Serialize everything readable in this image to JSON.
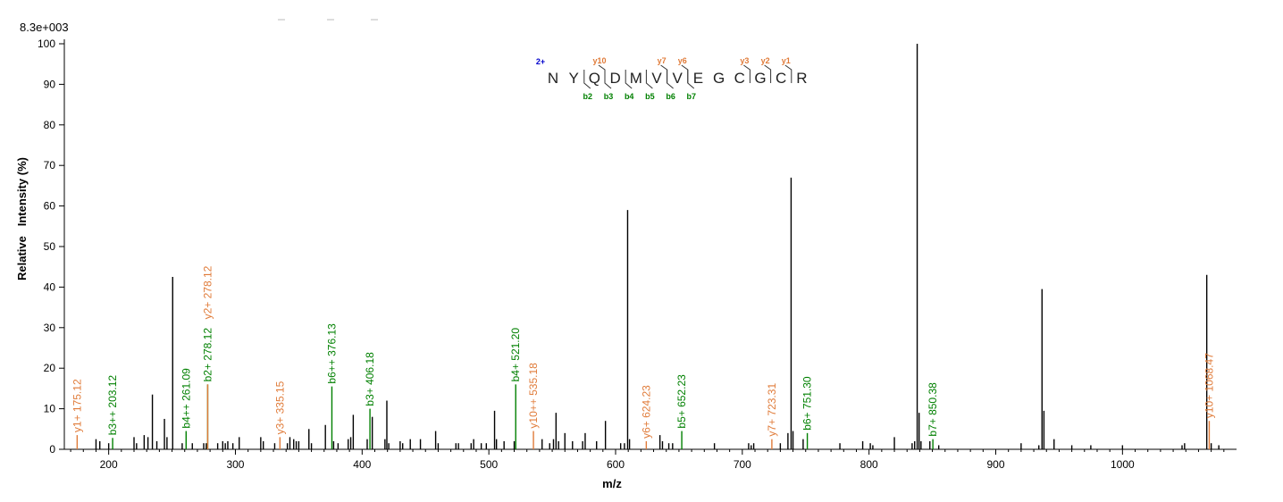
{
  "chart_data": {
    "type": "bar",
    "max_intensity_label": "8.3e+003",
    "xlabel": "m/z",
    "ylabel": "Relative   Intensity (%)",
    "xlim": [
      165,
      1090
    ],
    "ylim": [
      0,
      100
    ],
    "x_ticks": [
      200,
      300,
      400,
      500,
      600,
      700,
      800,
      900,
      1000
    ],
    "y_ticks": [
      0,
      10,
      20,
      30,
      40,
      50,
      60,
      70,
      80,
      90,
      100
    ],
    "colors": {
      "b": "#008000",
      "y": "#e07b39",
      "unassigned": "#000000",
      "charge": "#0000cc"
    },
    "peptide": {
      "charge": "2+",
      "residues": [
        "N",
        "Y",
        "Q",
        "D",
        "M",
        "V",
        "V",
        "E",
        "G",
        "C",
        "G",
        "C",
        "R"
      ],
      "y_ions": [
        {
          "label": "y10",
          "after": 3
        },
        {
          "label": "y7",
          "after": 6
        },
        {
          "label": "y6",
          "after": 7
        },
        {
          "label": "y3",
          "after": 10
        },
        {
          "label": "y2",
          "after": 11
        },
        {
          "label": "y1",
          "after": 12
        }
      ],
      "b_ions": [
        {
          "label": "b2",
          "after": 2
        },
        {
          "label": "b3",
          "after": 3
        },
        {
          "label": "b4",
          "after": 4
        },
        {
          "label": "b5",
          "after": 5
        },
        {
          "label": "b6",
          "after": 6
        },
        {
          "label": "b7",
          "after": 7
        }
      ]
    },
    "peaks": [
      {
        "mz": 175.12,
        "i": 3.5,
        "ion": "y",
        "label": "y1+ 175.12"
      },
      {
        "mz": 203.12,
        "i": 2.8,
        "ion": "b",
        "label": "b3++ 203.12"
      },
      {
        "mz": 261.09,
        "i": 4.5,
        "ion": "b",
        "label": "b4++ 261.09"
      },
      {
        "mz": 278.12,
        "i": 16.0,
        "ion": "b",
        "label": "b2+ 278.12"
      },
      {
        "mz": 278.12,
        "i": 16.0,
        "ion": "y",
        "label": "y2+ 278.12"
      },
      {
        "mz": 335.15,
        "i": 3.0,
        "ion": "y",
        "label": "y3+ 335.15"
      },
      {
        "mz": 376.13,
        "i": 15.5,
        "ion": "b",
        "label": "b6++ 376.13"
      },
      {
        "mz": 406.18,
        "i": 10.0,
        "ion": "b",
        "label": "b3+ 406.18"
      },
      {
        "mz": 521.2,
        "i": 16.0,
        "ion": "b",
        "label": "b4+ 521.20"
      },
      {
        "mz": 535.18,
        "i": 4.5,
        "ion": "y",
        "label": "y10++ 535.18"
      },
      {
        "mz": 624.23,
        "i": 2.0,
        "ion": "y",
        "label": "y6+ 624.23"
      },
      {
        "mz": 652.23,
        "i": 4.5,
        "ion": "b",
        "label": "b5+ 652.23"
      },
      {
        "mz": 723.31,
        "i": 2.5,
        "ion": "y",
        "label": "y7+ 723.31"
      },
      {
        "mz": 751.3,
        "i": 4.0,
        "ion": "b",
        "label": "b6+ 751.30"
      },
      {
        "mz": 850.38,
        "i": 2.5,
        "ion": "b",
        "label": "b7+ 850.38"
      },
      {
        "mz": 1068.47,
        "i": 7.0,
        "ion": "y",
        "label": "y10+ 1068.47"
      },
      {
        "mz": 190,
        "i": 2.5
      },
      {
        "mz": 193,
        "i": 2.0
      },
      {
        "mz": 200,
        "i": 1.5
      },
      {
        "mz": 220,
        "i": 3.0
      },
      {
        "mz": 222,
        "i": 1.5
      },
      {
        "mz": 228,
        "i": 3.5
      },
      {
        "mz": 231,
        "i": 3.0
      },
      {
        "mz": 234.5,
        "i": 13.5
      },
      {
        "mz": 238,
        "i": 2.0
      },
      {
        "mz": 244,
        "i": 7.5
      },
      {
        "mz": 246,
        "i": 3.0
      },
      {
        "mz": 250.5,
        "i": 42.5
      },
      {
        "mz": 258,
        "i": 1.5
      },
      {
        "mz": 266,
        "i": 1.5
      },
      {
        "mz": 275,
        "i": 1.5
      },
      {
        "mz": 277,
        "i": 1.5
      },
      {
        "mz": 286,
        "i": 1.5
      },
      {
        "mz": 290,
        "i": 2.0
      },
      {
        "mz": 292,
        "i": 1.5
      },
      {
        "mz": 294,
        "i": 2.0
      },
      {
        "mz": 298,
        "i": 1.5
      },
      {
        "mz": 303,
        "i": 3.0
      },
      {
        "mz": 320,
        "i": 3.0
      },
      {
        "mz": 322,
        "i": 2.0
      },
      {
        "mz": 331,
        "i": 1.5
      },
      {
        "mz": 341,
        "i": 1.5
      },
      {
        "mz": 343,
        "i": 3.0
      },
      {
        "mz": 346,
        "i": 2.5
      },
      {
        "mz": 348,
        "i": 2.0
      },
      {
        "mz": 350,
        "i": 2.0
      },
      {
        "mz": 358,
        "i": 5.0
      },
      {
        "mz": 360,
        "i": 1.5
      },
      {
        "mz": 371,
        "i": 6.0
      },
      {
        "mz": 377.5,
        "i": 2.0
      },
      {
        "mz": 381,
        "i": 1.5
      },
      {
        "mz": 389,
        "i": 2.5
      },
      {
        "mz": 391,
        "i": 3.0
      },
      {
        "mz": 393,
        "i": 8.5
      },
      {
        "mz": 404,
        "i": 2.5
      },
      {
        "mz": 408,
        "i": 8.0
      },
      {
        "mz": 418,
        "i": 2.5
      },
      {
        "mz": 419.5,
        "i": 12.0
      },
      {
        "mz": 421,
        "i": 1.5
      },
      {
        "mz": 430,
        "i": 2.0
      },
      {
        "mz": 432,
        "i": 1.5
      },
      {
        "mz": 438,
        "i": 2.5
      },
      {
        "mz": 446,
        "i": 2.5
      },
      {
        "mz": 458,
        "i": 4.5
      },
      {
        "mz": 460,
        "i": 1.5
      },
      {
        "mz": 474,
        "i": 1.5
      },
      {
        "mz": 476,
        "i": 1.5
      },
      {
        "mz": 486,
        "i": 1.5
      },
      {
        "mz": 488,
        "i": 2.5
      },
      {
        "mz": 494,
        "i": 1.5
      },
      {
        "mz": 498,
        "i": 1.5
      },
      {
        "mz": 504.5,
        "i": 9.5
      },
      {
        "mz": 506,
        "i": 2.5
      },
      {
        "mz": 512,
        "i": 2.0
      },
      {
        "mz": 520,
        "i": 2.0
      },
      {
        "mz": 542,
        "i": 2.5
      },
      {
        "mz": 548,
        "i": 1.5
      },
      {
        "mz": 551,
        "i": 2.5
      },
      {
        "mz": 553,
        "i": 9.0
      },
      {
        "mz": 555,
        "i": 2.0
      },
      {
        "mz": 560,
        "i": 4.0
      },
      {
        "mz": 566,
        "i": 2.0
      },
      {
        "mz": 574,
        "i": 2.0
      },
      {
        "mz": 576,
        "i": 4.0
      },
      {
        "mz": 585,
        "i": 2.0
      },
      {
        "mz": 592,
        "i": 7.0
      },
      {
        "mz": 604,
        "i": 1.5
      },
      {
        "mz": 607,
        "i": 1.5
      },
      {
        "mz": 609.5,
        "i": 59.0
      },
      {
        "mz": 611,
        "i": 2.5
      },
      {
        "mz": 635,
        "i": 3.5
      },
      {
        "mz": 637,
        "i": 2.0
      },
      {
        "mz": 642,
        "i": 1.5
      },
      {
        "mz": 645,
        "i": 1.5
      },
      {
        "mz": 678,
        "i": 1.5
      },
      {
        "mz": 705,
        "i": 1.5
      },
      {
        "mz": 707,
        "i": 1.0
      },
      {
        "mz": 709,
        "i": 1.5
      },
      {
        "mz": 730,
        "i": 1.5
      },
      {
        "mz": 736,
        "i": 4.0
      },
      {
        "mz": 738.5,
        "i": 67.0
      },
      {
        "mz": 740,
        "i": 4.5
      },
      {
        "mz": 748,
        "i": 2.5
      },
      {
        "mz": 777,
        "i": 1.5
      },
      {
        "mz": 795,
        "i": 2.0
      },
      {
        "mz": 801,
        "i": 1.5
      },
      {
        "mz": 803,
        "i": 1.0
      },
      {
        "mz": 820,
        "i": 3.0
      },
      {
        "mz": 834,
        "i": 1.5
      },
      {
        "mz": 836,
        "i": 2.0
      },
      {
        "mz": 838,
        "i": 100.0
      },
      {
        "mz": 839.5,
        "i": 9.0
      },
      {
        "mz": 841,
        "i": 2.0
      },
      {
        "mz": 848,
        "i": 2.0
      },
      {
        "mz": 855,
        "i": 1.0
      },
      {
        "mz": 920,
        "i": 1.5
      },
      {
        "mz": 934,
        "i": 1.0
      },
      {
        "mz": 936.5,
        "i": 39.5
      },
      {
        "mz": 938,
        "i": 9.5
      },
      {
        "mz": 946,
        "i": 2.5
      },
      {
        "mz": 960,
        "i": 1.0
      },
      {
        "mz": 975,
        "i": 1.0
      },
      {
        "mz": 1000,
        "i": 1.0
      },
      {
        "mz": 1047,
        "i": 1.0
      },
      {
        "mz": 1049,
        "i": 1.5
      },
      {
        "mz": 1066.5,
        "i": 43.0
      },
      {
        "mz": 1070,
        "i": 1.5
      },
      {
        "mz": 1076,
        "i": 1.0
      }
    ]
  }
}
